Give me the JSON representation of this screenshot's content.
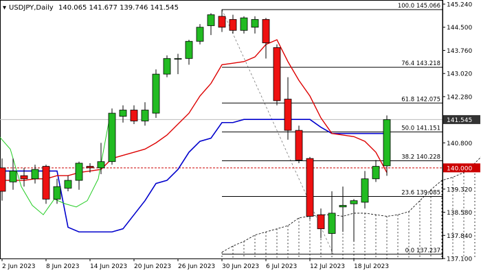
{
  "header": {
    "symbol_timeframe": "USDJPY,Daily",
    "ohlc": "140.065 141.677 139.746 141.545"
  },
  "colors": {
    "bull": "#22bb22",
    "bear": "#ee1111",
    "kijun": "#0000cc",
    "tenkan": "#dd0000",
    "chikou": "#22cc22",
    "fib_level": "#000000",
    "fib_diagonal": "#777777",
    "cloud_edge": "#000000",
    "price_marker_bg": "#cc0000",
    "current_price_marker_bg": "#333333"
  },
  "chart_data": {
    "type": "candlestick",
    "title": "USDJPY,Daily",
    "ylim": [
      137.1,
      145.35
    ],
    "yticks": [
      "145.240",
      "144.500",
      "143.760",
      "143.020",
      "142.280",
      "141.545",
      "140.800",
      "140.000",
      "139.320",
      "138.580",
      "137.840",
      "137.100"
    ],
    "xticks": [
      {
        "label": "2 Jun 2023",
        "bar": 0
      },
      {
        "label": "8 Jun 2023",
        "bar": 4
      },
      {
        "label": "14 Jun 2023",
        "bar": 8
      },
      {
        "label": "20 Jun 2023",
        "bar": 12
      },
      {
        "label": "26 Jun 2023",
        "bar": 16
      },
      {
        "label": "30 Jun 2023",
        "bar": 20
      },
      {
        "label": "6 Jul 2023",
        "bar": 24
      },
      {
        "label": "12 Jul 2023",
        "bar": 28
      },
      {
        "label": "18 Jul 2023",
        "bar": 32
      }
    ],
    "candles": [
      {
        "o": 140.0,
        "h": 140.3,
        "l": 138.95,
        "c": 139.25
      },
      {
        "o": 139.55,
        "h": 140.3,
        "l": 139.3,
        "c": 139.9
      },
      {
        "o": 139.75,
        "h": 140.0,
        "l": 139.4,
        "c": 139.65
      },
      {
        "o": 139.65,
        "h": 140.1,
        "l": 139.5,
        "c": 139.95
      },
      {
        "o": 140.05,
        "h": 140.1,
        "l": 138.85,
        "c": 139.0
      },
      {
        "o": 139.0,
        "h": 139.65,
        "l": 138.85,
        "c": 139.4
      },
      {
        "o": 139.35,
        "h": 139.75,
        "l": 139.25,
        "c": 139.6
      },
      {
        "o": 139.6,
        "h": 140.2,
        "l": 139.3,
        "c": 140.15
      },
      {
        "o": 140.05,
        "h": 140.15,
        "l": 139.85,
        "c": 140.0
      },
      {
        "o": 140.0,
        "h": 140.8,
        "l": 139.8,
        "c": 140.2
      },
      {
        "o": 140.2,
        "h": 141.9,
        "l": 140.1,
        "c": 141.75
      },
      {
        "o": 141.65,
        "h": 142.0,
        "l": 141.45,
        "c": 141.85
      },
      {
        "o": 141.85,
        "h": 142.0,
        "l": 141.4,
        "c": 141.5
      },
      {
        "o": 141.5,
        "h": 142.1,
        "l": 141.35,
        "c": 141.85
      },
      {
        "o": 141.75,
        "h": 143.15,
        "l": 141.6,
        "c": 143.0
      },
      {
        "o": 143.0,
        "h": 143.6,
        "l": 142.9,
        "c": 143.5
      },
      {
        "o": 143.5,
        "h": 143.65,
        "l": 143.0,
        "c": 143.5
      },
      {
        "o": 143.5,
        "h": 144.1,
        "l": 143.3,
        "c": 144.05
      },
      {
        "o": 144.05,
        "h": 144.6,
        "l": 143.95,
        "c": 144.5
      },
      {
        "o": 144.55,
        "h": 144.95,
        "l": 144.25,
        "c": 144.9
      },
      {
        "o": 144.85,
        "h": 145.07,
        "l": 144.35,
        "c": 144.5
      },
      {
        "o": 144.75,
        "h": 144.9,
        "l": 144.3,
        "c": 144.4
      },
      {
        "o": 144.4,
        "h": 144.85,
        "l": 144.3,
        "c": 144.8
      },
      {
        "o": 144.5,
        "h": 144.85,
        "l": 144.3,
        "c": 144.75
      },
      {
        "o": 144.75,
        "h": 144.8,
        "l": 143.5,
        "c": 144.0
      },
      {
        "o": 143.85,
        "h": 143.95,
        "l": 142.0,
        "c": 142.15
      },
      {
        "o": 142.2,
        "h": 142.9,
        "l": 140.9,
        "c": 141.2
      },
      {
        "o": 141.2,
        "h": 141.35,
        "l": 140.15,
        "c": 140.25
      },
      {
        "o": 140.3,
        "h": 140.35,
        "l": 138.35,
        "c": 138.45
      },
      {
        "o": 138.5,
        "h": 138.7,
        "l": 137.75,
        "c": 138.05
      },
      {
        "o": 137.9,
        "h": 139.25,
        "l": 137.3,
        "c": 138.55
      },
      {
        "o": 138.75,
        "h": 139.4,
        "l": 137.95,
        "c": 138.8
      },
      {
        "o": 138.85,
        "h": 139.0,
        "l": 137.65,
        "c": 138.95
      },
      {
        "o": 138.9,
        "h": 139.9,
        "l": 138.7,
        "c": 139.65
      },
      {
        "o": 139.65,
        "h": 140.25,
        "l": 139.55,
        "c": 140.05
      },
      {
        "o": 140.065,
        "h": 141.677,
        "l": 139.746,
        "c": 141.545
      }
    ],
    "indicators": {
      "kijun": [
        139.9,
        139.9,
        139.9,
        139.9,
        139.9,
        139.9,
        138.1,
        137.95,
        137.95,
        137.95,
        137.95,
        138.05,
        138.5,
        138.95,
        139.5,
        139.6,
        139.95,
        140.5,
        140.85,
        140.95,
        141.45,
        141.45,
        141.55,
        141.55,
        141.55,
        141.55,
        141.55,
        141.55,
        141.55,
        141.3,
        141.1,
        141.1,
        141.1,
        141.1,
        141.1,
        141.1
      ],
      "tenkan": [
        139.6,
        139.6,
        139.6,
        139.65,
        139.65,
        139.75,
        139.75,
        139.85,
        139.9,
        139.95,
        140.3,
        140.4,
        140.5,
        140.6,
        140.8,
        141.05,
        141.4,
        141.75,
        142.3,
        142.7,
        143.3,
        143.35,
        143.4,
        143.55,
        143.95,
        144.1,
        143.4,
        142.8,
        142.3,
        141.6,
        141.1,
        141.05,
        141.0,
        140.85,
        140.5,
        139.85
      ],
      "chikou": [
        141.0,
        140.6,
        139.4,
        138.8,
        138.5,
        139.0,
        138.85,
        138.75,
        138.95,
        139.65,
        141.55
      ],
      "cloud_top": [
        137.3,
        137.5,
        137.65,
        137.85,
        137.95,
        138.05,
        138.15,
        138.4,
        138.45,
        138.5,
        138.5,
        138.45,
        138.55,
        138.55,
        138.5,
        138.45,
        138.5,
        138.6,
        138.95,
        139.3,
        139.6,
        139.7,
        139.85,
        140.15,
        140.5,
        140.85
      ],
      "cloud_bottom": [
        137.1,
        137.1,
        137.1,
        137.1,
        137.1,
        137.1,
        137.1,
        137.1,
        137.1,
        137.1,
        137.1,
        137.1,
        137.1,
        137.1,
        137.1,
        137.1,
        137.1,
        137.1,
        137.1,
        137.1,
        137.1,
        137.1,
        137.1,
        137.1,
        137.1,
        137.1
      ]
    },
    "fibonacci": [
      {
        "label": "100.0 145.066",
        "price": 145.066
      },
      {
        "label": "76.4 143.218",
        "price": 143.218
      },
      {
        "label": "61.8 142.075",
        "price": 142.075
      },
      {
        "label": "50.0 141.151",
        "price": 141.151
      },
      {
        "label": "38.2 140.228",
        "price": 140.228
      },
      {
        "label": "23.6 139.085",
        "price": 139.085
      },
      {
        "label": "0.0 137.237",
        "price": 137.237
      }
    ],
    "horizontal_level": {
      "label": "140.000",
      "price": 140.0
    },
    "current_price": {
      "label": "141.545",
      "price": 141.545
    }
  }
}
